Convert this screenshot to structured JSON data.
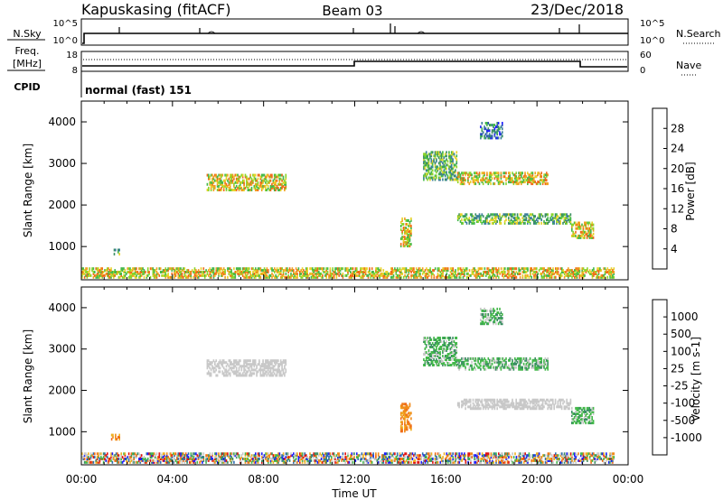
{
  "header": {
    "station": "Kapuskasing (fitACF)",
    "beam": "Beam 03",
    "date": "23/Dec/2018"
  },
  "top_panels": {
    "nsky_label": "N.Sky",
    "nsky_ticks": [
      "10^5",
      "10^0"
    ],
    "nsearch_label": "N.Search",
    "nsearch_ticks": [
      "10^5",
      "10^0"
    ],
    "freq_label_1": "Freq.",
    "freq_label_2": "[MHz]",
    "freq_ticks": [
      "18",
      "8"
    ],
    "nave_label": "Nave",
    "nave_ticks": [
      "60",
      "0"
    ],
    "cpid_label": "CPID",
    "cpid_text": "normal (fast) 151"
  },
  "chart_data": [
    {
      "type": "heatmap",
      "name": "power",
      "ylabel": "Slant Range [km]",
      "xlabel": "Time UT",
      "ylim": [
        200,
        4500
      ],
      "xlim": [
        0,
        24
      ],
      "yticks": [
        "1000",
        "2000",
        "3000",
        "4000"
      ],
      "xticks": [
        "00:00",
        "04:00",
        "08:00",
        "12:00",
        "16:00",
        "20:00",
        "00:00"
      ],
      "colorbar": {
        "label": "Power [dB]",
        "ticks": [
          "4",
          "8",
          "12",
          "16",
          "20",
          "24",
          "28"
        ],
        "colors": [
          "#1a1aff",
          "#2a52b8",
          "#3b7f9a",
          "#3a8f62",
          "#43b84a",
          "#8ad42a",
          "#e6d22a",
          "#f0a020",
          "#f06a18",
          "#e83010",
          "#e01010"
        ]
      },
      "regions": [
        {
          "t0": 0.0,
          "t1": 23.4,
          "r0": 250,
          "r1": 500,
          "level": "low-high mix"
        },
        {
          "t0": 1.3,
          "t1": 1.7,
          "r0": 800,
          "r1": 950,
          "level": "medium"
        },
        {
          "t0": 5.5,
          "t1": 9.0,
          "r0": 2350,
          "r1": 2750,
          "level": "medium-high"
        },
        {
          "t0": 14.0,
          "t1": 14.5,
          "r0": 1000,
          "r1": 1700,
          "level": "high"
        },
        {
          "t0": 15.0,
          "t1": 16.5,
          "r0": 2600,
          "r1": 3300,
          "level": "medium"
        },
        {
          "t0": 16.5,
          "t1": 20.5,
          "r0": 2500,
          "r1": 2800,
          "level": "high"
        },
        {
          "t0": 16.5,
          "t1": 21.5,
          "r0": 1550,
          "r1": 1800,
          "level": "medium"
        },
        {
          "t0": 21.5,
          "t1": 22.5,
          "r0": 1200,
          "r1": 1600,
          "level": "high"
        },
        {
          "t0": 17.5,
          "t1": 18.5,
          "r0": 3600,
          "r1": 4000,
          "level": "low"
        }
      ]
    },
    {
      "type": "heatmap",
      "name": "velocity",
      "ylabel": "Slant Range [km]",
      "xlabel": "Time UT",
      "ylim": [
        200,
        4500
      ],
      "xlim": [
        0,
        24
      ],
      "yticks": [
        "1000",
        "2000",
        "3000",
        "4000"
      ],
      "xticks": [
        "00:00",
        "04:00",
        "08:00",
        "12:00",
        "16:00",
        "20:00",
        "00:00"
      ],
      "colorbar": {
        "label": "Velocity [m s-1]",
        "ticks": [
          "1000",
          "500",
          "100",
          "25",
          "-25",
          "-100",
          "-500",
          "-1000"
        ],
        "colors": [
          "#1a1aff",
          "#2e6db0",
          "#3a8f62",
          "#43b84a",
          "#c8c8c8",
          "#c8c8c8",
          "#f0b020",
          "#f08a18",
          "#f06a18",
          "#e01010"
        ]
      },
      "regions": [
        {
          "t0": 0.0,
          "t1": 23.4,
          "r0": 250,
          "r1": 500,
          "level": "mixed"
        },
        {
          "t0": 1.3,
          "t1": 1.7,
          "r0": 800,
          "r1": 950,
          "level": "negative"
        },
        {
          "t0": 5.5,
          "t1": 9.0,
          "r0": 2350,
          "r1": 2750,
          "level": "near-zero"
        },
        {
          "t0": 14.0,
          "t1": 14.5,
          "r0": 1000,
          "r1": 1700,
          "level": "negative"
        },
        {
          "t0": 15.0,
          "t1": 16.5,
          "r0": 2600,
          "r1": 3300,
          "level": "positive"
        },
        {
          "t0": 16.5,
          "t1": 20.5,
          "r0": 2500,
          "r1": 2800,
          "level": "positive"
        },
        {
          "t0": 16.5,
          "t1": 21.5,
          "r0": 1550,
          "r1": 1800,
          "level": "near-zero"
        },
        {
          "t0": 21.5,
          "t1": 22.5,
          "r0": 1200,
          "r1": 1600,
          "level": "positive"
        },
        {
          "t0": 17.5,
          "t1": 18.5,
          "r0": 3600,
          "r1": 4000,
          "level": "positive"
        }
      ]
    }
  ]
}
